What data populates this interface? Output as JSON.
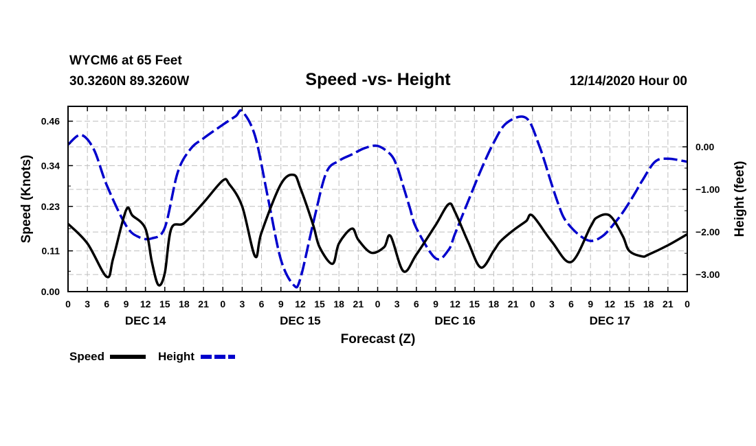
{
  "header": {
    "station": "WYCM6 at 65 Feet",
    "location": "30.3260N 89.3260W",
    "title": "Speed -vs- Height",
    "run": "12/14/2020 Hour 00"
  },
  "chart_data": {
    "type": "line",
    "title": "Speed -vs- Height",
    "xlabel": "Forecast (Z)",
    "ylabel": "Speed (Knots)",
    "y2label": "Height (feet)",
    "xlim": [
      0,
      96
    ],
    "ylim": [
      0,
      0.5
    ],
    "y2lim": [
      -3.4,
      0.95
    ],
    "x_tick_labels": [
      "0",
      "3",
      "6",
      "9",
      "12",
      "15",
      "18",
      "21",
      "0",
      "3",
      "6",
      "9",
      "12",
      "15",
      "18",
      "21",
      "0",
      "3",
      "6",
      "9",
      "12",
      "15",
      "18",
      "21",
      "0",
      "3",
      "6",
      "9",
      "12",
      "15",
      "18",
      "21",
      "0"
    ],
    "day_labels": [
      "DEC 14",
      "DEC 15",
      "DEC 16",
      "DEC 17"
    ],
    "y_ticks": [
      0.0,
      0.11,
      0.23,
      0.34,
      0.46
    ],
    "y_tick_labels": [
      "0.00",
      "0.11",
      "0.23",
      "0.34",
      "0.46"
    ],
    "y2_ticks": [
      0,
      -1,
      -2,
      -3
    ],
    "y2_tick_labels": [
      "0.00",
      "−1.00",
      "−2.00",
      "−3.00"
    ],
    "grid": true,
    "legend": "bottom-left",
    "series": [
      {
        "name": "Speed",
        "axis": "left",
        "color": "#000000",
        "style": "solid",
        "x": [
          0,
          3,
          6,
          7,
          9,
          10,
          12,
          13,
          14,
          15,
          16,
          18,
          21,
          24,
          25,
          27,
          29,
          30,
          33,
          35,
          36,
          38,
          39,
          41,
          42,
          44,
          45,
          47,
          49,
          50,
          52,
          54,
          57,
          59,
          60,
          62,
          64,
          66,
          67,
          69,
          71,
          72,
          75,
          78,
          81,
          82,
          84,
          86,
          87,
          89,
          90,
          93,
          96
        ],
        "y": [
          0.183,
          0.13,
          0.04,
          0.09,
          0.22,
          0.205,
          0.17,
          0.08,
          0.018,
          0.05,
          0.17,
          0.185,
          0.24,
          0.3,
          0.29,
          0.23,
          0.095,
          0.16,
          0.29,
          0.315,
          0.28,
          0.18,
          0.12,
          0.075,
          0.13,
          0.17,
          0.14,
          0.105,
          0.12,
          0.15,
          0.055,
          0.1,
          0.18,
          0.236,
          0.215,
          0.135,
          0.065,
          0.11,
          0.135,
          0.165,
          0.19,
          0.205,
          0.135,
          0.08,
          0.175,
          0.2,
          0.205,
          0.15,
          0.11,
          0.095,
          0.1,
          0.125,
          0.155
        ]
      },
      {
        "name": "Height",
        "axis": "right",
        "color": "#0000cc",
        "style": "dashed",
        "x": [
          0,
          2,
          4,
          6,
          9,
          11,
          13,
          15,
          17,
          19,
          21,
          24,
          26,
          27,
          29,
          31,
          33,
          35,
          36,
          38,
          40,
          42,
          44,
          46,
          48,
          50,
          51,
          52,
          53,
          54,
          57,
          59,
          60,
          62,
          64,
          66,
          68,
          71,
          73,
          75,
          76,
          77,
          79,
          81,
          83,
          85,
          86,
          87,
          88,
          89,
          91,
          93,
          96
        ],
        "y": [
          0.05,
          0.28,
          -0.06,
          -0.9,
          -1.85,
          -2.12,
          -2.15,
          -1.9,
          -0.6,
          -0.05,
          0.2,
          0.52,
          0.72,
          0.83,
          0.25,
          -1.2,
          -2.65,
          -3.25,
          -3.1,
          -1.8,
          -0.62,
          -0.33,
          -0.18,
          -0.03,
          0.02,
          -0.18,
          -0.46,
          -0.94,
          -1.44,
          -1.91,
          -2.62,
          -2.42,
          -2.04,
          -1.29,
          -0.55,
          0.1,
          0.56,
          0.68,
          0.05,
          -0.89,
          -1.34,
          -1.7,
          -2.04,
          -2.21,
          -2.08,
          -1.74,
          -1.54,
          -1.31,
          -1.06,
          -0.8,
          -0.35,
          -0.28,
          -0.35
        ]
      }
    ]
  }
}
